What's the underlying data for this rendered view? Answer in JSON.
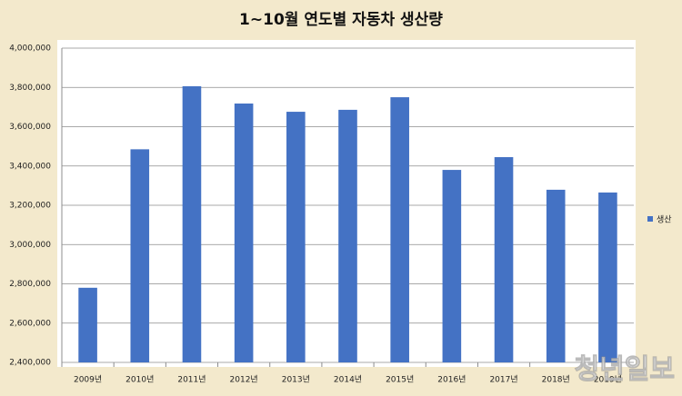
{
  "chart_data": {
    "type": "bar",
    "title": "1~10월 연도별 자동차 생산량",
    "categories": [
      "2009년",
      "2010년",
      "2011년",
      "2012년",
      "2013년",
      "2014년",
      "2015년",
      "2016년",
      "2017년",
      "2018년",
      "2019년"
    ],
    "series": [
      {
        "name": "생산",
        "color": "#4472c4",
        "values": [
          2780000,
          3485000,
          3806000,
          3718000,
          3676000,
          3686000,
          3750000,
          3380000,
          3445000,
          3279000,
          3265000
        ]
      }
    ],
    "ylim": [
      2400000,
      4000000
    ],
    "yticks": [
      {
        "value": 2400000,
        "label": "2,400,000"
      },
      {
        "value": 2600000,
        "label": "2,600,000"
      },
      {
        "value": 2800000,
        "label": "2,800,000"
      },
      {
        "value": 3000000,
        "label": "3,000,000"
      },
      {
        "value": 3200000,
        "label": "3,200,000"
      },
      {
        "value": 3400000,
        "label": "3,400,000"
      },
      {
        "value": 3600000,
        "label": "3,600,000"
      },
      {
        "value": 3800000,
        "label": "3,800,000"
      },
      {
        "value": 4000000,
        "label": "4,000,000"
      }
    ],
    "grid": true,
    "legend": "right"
  },
  "watermark": "청년일보"
}
